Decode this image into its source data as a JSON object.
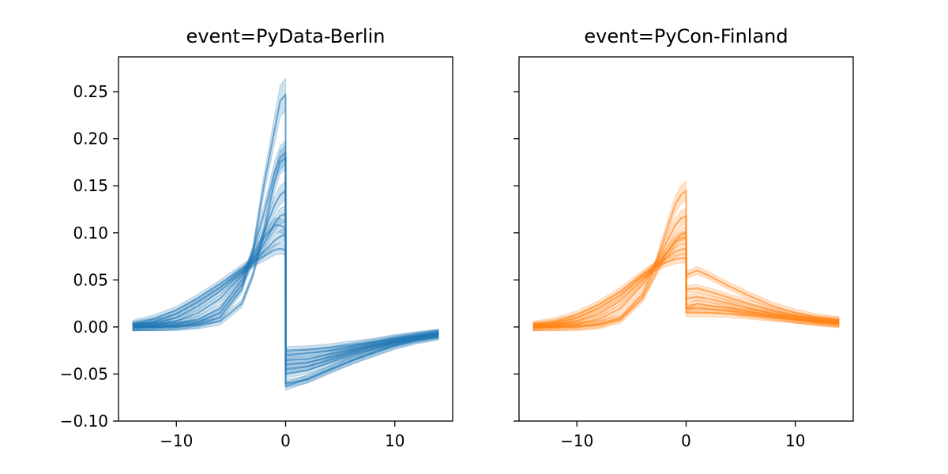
{
  "chart_data": [
    {
      "type": "line",
      "title": "event=PyData-Berlin",
      "color": "#1f77b4",
      "xlabel": "",
      "ylabel": "",
      "xlim": [
        -15.3,
        15.3
      ],
      "ylim": [
        -0.1,
        0.287
      ],
      "xticks": [
        -10,
        0,
        10
      ],
      "xtick_labels": [
        "−10",
        "0",
        "10"
      ],
      "yticks": [
        -0.1,
        -0.05,
        0.0,
        0.05,
        0.1,
        0.15,
        0.2,
        0.25
      ],
      "ytick_labels": [
        "−0.10",
        "−0.05",
        "0.00",
        "0.05",
        "0.10",
        "0.15",
        "0.20",
        "0.25"
      ],
      "grid": false,
      "x": [
        -14,
        -12,
        -10,
        -8,
        -6,
        -4,
        -3,
        -2,
        -1,
        -0.5,
        0,
        0.01,
        2,
        4,
        6,
        8,
        10,
        12,
        14
      ],
      "series": [
        {
          "values": [
            0.0,
            0.0,
            0.001,
            0.003,
            0.01,
            0.04,
            0.08,
            0.15,
            0.21,
            0.24,
            0.247,
            -0.063,
            -0.055,
            -0.045,
            -0.036,
            -0.028,
            -0.02,
            -0.014,
            -0.01
          ]
        },
        {
          "values": [
            0.0,
            0.001,
            0.003,
            0.008,
            0.02,
            0.05,
            0.08,
            0.12,
            0.165,
            0.18,
            0.185,
            -0.06,
            -0.056,
            -0.046,
            -0.036,
            -0.027,
            -0.019,
            -0.013,
            -0.009
          ]
        },
        {
          "values": [
            0.0,
            0.002,
            0.006,
            0.015,
            0.03,
            0.055,
            0.075,
            0.1,
            0.13,
            0.14,
            0.145,
            -0.05,
            -0.046,
            -0.038,
            -0.03,
            -0.023,
            -0.017,
            -0.012,
            -0.008
          ]
        },
        {
          "values": [
            0.001,
            0.004,
            0.01,
            0.022,
            0.038,
            0.058,
            0.07,
            0.088,
            0.11,
            0.118,
            0.12,
            -0.045,
            -0.042,
            -0.035,
            -0.028,
            -0.021,
            -0.016,
            -0.011,
            -0.008
          ]
        },
        {
          "values": [
            0.002,
            0.006,
            0.014,
            0.027,
            0.042,
            0.06,
            0.068,
            0.08,
            0.092,
            0.096,
            0.098,
            -0.04,
            -0.038,
            -0.032,
            -0.026,
            -0.02,
            -0.015,
            -0.011,
            -0.007
          ]
        },
        {
          "values": [
            0.003,
            0.009,
            0.018,
            0.031,
            0.046,
            0.062,
            0.069,
            0.075,
            0.082,
            0.083,
            0.082,
            -0.035,
            -0.034,
            -0.029,
            -0.024,
            -0.019,
            -0.014,
            -0.01,
            -0.007
          ]
        },
        {
          "values": [
            0.0,
            0.0,
            0.0,
            0.002,
            0.006,
            0.025,
            0.055,
            0.1,
            0.155,
            0.175,
            0.18,
            -0.03,
            -0.028,
            -0.025,
            -0.021,
            -0.017,
            -0.013,
            -0.01,
            -0.007
          ]
        },
        {
          "values": [
            0.0,
            0.0,
            0.001,
            0.005,
            0.015,
            0.045,
            0.07,
            0.095,
            0.108,
            0.108,
            0.105,
            -0.025,
            -0.024,
            -0.022,
            -0.019,
            -0.016,
            -0.012,
            -0.009,
            -0.006
          ]
        }
      ]
    },
    {
      "type": "line",
      "title": "event=PyCon-Finland",
      "color": "#ff7f0e",
      "xlabel": "",
      "ylabel": "",
      "xlim": [
        -15.3,
        15.3
      ],
      "ylim": [
        -0.1,
        0.287
      ],
      "xticks": [
        -10,
        0,
        10
      ],
      "xtick_labels": [
        "−10",
        "0",
        "10"
      ],
      "yticks": [
        -0.1,
        -0.05,
        0.0,
        0.05,
        0.1,
        0.15,
        0.2,
        0.25
      ],
      "grid": false,
      "x": [
        -14,
        -12,
        -10,
        -8,
        -6,
        -4,
        -3,
        -2,
        -1,
        -0.5,
        0,
        0.01,
        1,
        2,
        4,
        6,
        8,
        10,
        12,
        14
      ],
      "series": [
        {
          "values": [
            0.0,
            0.0,
            0.001,
            0.003,
            0.01,
            0.035,
            0.06,
            0.095,
            0.13,
            0.14,
            0.145,
            0.02,
            0.025,
            0.023,
            0.02,
            0.016,
            0.012,
            0.008,
            0.005,
            0.003
          ]
        },
        {
          "values": [
            0.0,
            0.001,
            0.003,
            0.008,
            0.02,
            0.045,
            0.062,
            0.085,
            0.108,
            0.115,
            0.118,
            0.03,
            0.032,
            0.03,
            0.025,
            0.019,
            0.014,
            0.01,
            0.007,
            0.005
          ]
        },
        {
          "values": [
            0.001,
            0.002,
            0.006,
            0.014,
            0.028,
            0.05,
            0.062,
            0.076,
            0.09,
            0.094,
            0.095,
            0.04,
            0.041,
            0.038,
            0.031,
            0.024,
            0.017,
            0.012,
            0.008,
            0.006
          ]
        },
        {
          "values": [
            0.001,
            0.004,
            0.01,
            0.02,
            0.034,
            0.054,
            0.063,
            0.072,
            0.08,
            0.082,
            0.083,
            0.055,
            0.06,
            0.055,
            0.043,
            0.032,
            0.022,
            0.015,
            0.01,
            0.007
          ]
        },
        {
          "values": [
            0.002,
            0.006,
            0.013,
            0.024,
            0.038,
            0.056,
            0.063,
            0.068,
            0.072,
            0.073,
            0.073,
            0.02,
            0.02,
            0.019,
            0.017,
            0.014,
            0.011,
            0.008,
            0.006,
            0.004
          ]
        },
        {
          "values": [
            0.0,
            0.0,
            0.0,
            0.002,
            0.008,
            0.03,
            0.052,
            0.075,
            0.092,
            0.098,
            0.1,
            0.015,
            0.015,
            0.015,
            0.014,
            0.012,
            0.01,
            0.008,
            0.006,
            0.004
          ]
        }
      ]
    }
  ]
}
